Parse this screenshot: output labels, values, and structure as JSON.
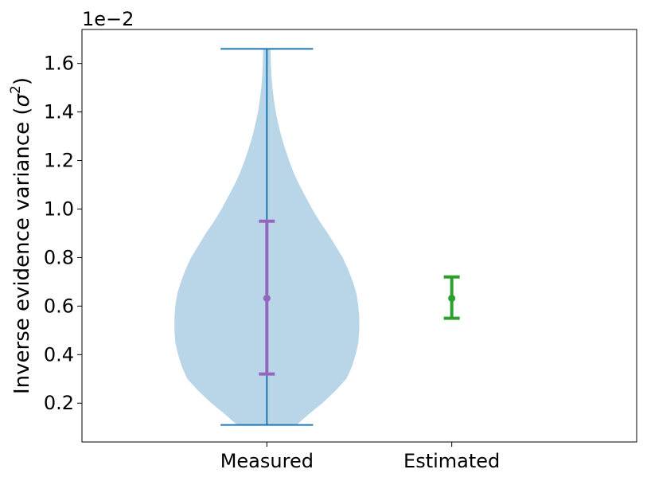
{
  "chart_data": {
    "type": "violin",
    "categories": [
      "Measured",
      "Estimated"
    ],
    "ylabel": "Inverse evidence variance (σ²)",
    "ylabel_main": "Inverse evidence variance (",
    "ylabel_symbol": "σ",
    "ylabel_sup": "2",
    "ylabel_close": ")",
    "offset_text": "1e−2",
    "y_scale_factor": 0.01,
    "ylim": [
      0.04,
      1.74
    ],
    "yticks": [
      0.2,
      0.4,
      0.6,
      0.8,
      1.0,
      1.2,
      1.4,
      1.6
    ],
    "ytick_labels": [
      "0.2",
      "0.4",
      "0.6",
      "0.8",
      "1.0",
      "1.2",
      "1.4",
      "1.6"
    ],
    "xlim": [
      0.0,
      3.0
    ],
    "x_positions": [
      1,
      2
    ],
    "grid": false,
    "violin": {
      "category": "Measured",
      "min": 0.11,
      "max": 1.66,
      "cap_halfwidth": 0.25,
      "density_profile": [
        [
          0.11,
          0.16
        ],
        [
          0.15,
          0.22
        ],
        [
          0.2,
          0.3
        ],
        [
          0.25,
          0.37
        ],
        [
          0.3,
          0.43
        ],
        [
          0.35,
          0.46
        ],
        [
          0.4,
          0.48
        ],
        [
          0.45,
          0.495
        ],
        [
          0.5,
          0.5
        ],
        [
          0.55,
          0.5
        ],
        [
          0.6,
          0.495
        ],
        [
          0.65,
          0.485
        ],
        [
          0.7,
          0.465
        ],
        [
          0.75,
          0.44
        ],
        [
          0.8,
          0.41
        ],
        [
          0.85,
          0.37
        ],
        [
          0.9,
          0.33
        ],
        [
          0.95,
          0.285
        ],
        [
          1.0,
          0.245
        ],
        [
          1.05,
          0.21
        ],
        [
          1.1,
          0.175
        ],
        [
          1.15,
          0.145
        ],
        [
          1.2,
          0.12
        ],
        [
          1.25,
          0.098
        ],
        [
          1.3,
          0.078
        ],
        [
          1.35,
          0.062
        ],
        [
          1.4,
          0.048
        ],
        [
          1.45,
          0.038
        ],
        [
          1.5,
          0.03
        ],
        [
          1.55,
          0.025
        ],
        [
          1.6,
          0.022
        ],
        [
          1.66,
          0.02
        ]
      ],
      "fill_color": "#b9d5e8",
      "line_color": "#1f77b4"
    },
    "series": [
      {
        "category": "Measured",
        "mean": 0.632,
        "lower": 0.32,
        "upper": 0.95,
        "color": "#9467bd"
      },
      {
        "category": "Estimated",
        "mean": 0.632,
        "lower": 0.55,
        "upper": 0.72,
        "color": "#2ca02c"
      }
    ]
  }
}
